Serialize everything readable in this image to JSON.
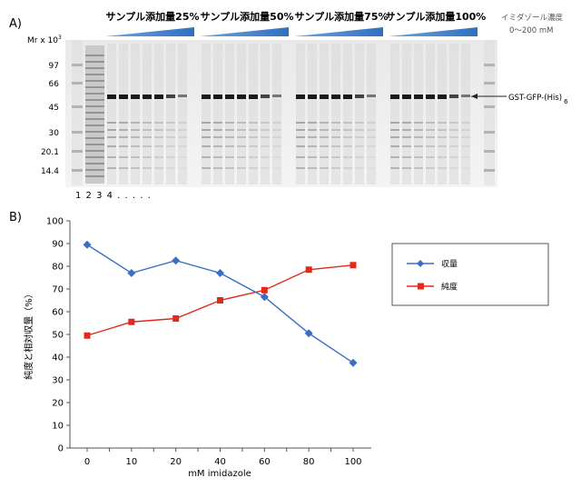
{
  "panel_a": {
    "label": "A)",
    "mr_axis_label": "Mr x 10",
    "mr_axis_superscript": "3",
    "mr_markers": [
      "97",
      "66",
      "45",
      "30",
      "20.1",
      "14.4"
    ],
    "group_headers": [
      "サンプル添加量25%",
      "サンプル添加量50%",
      "サンプル添加量75%",
      "サンプル添加量100%"
    ],
    "gradient_legend": [
      "イミダゾール濃度",
      "0〜200 mM"
    ],
    "band_label": "GST-GFP-(His)",
    "band_label_subscript": "6",
    "lane_numbers": "1 2 3 4 . . . . .",
    "colors": {
      "wedge": "#2f6fc0",
      "band": "#1b1b1b",
      "gel_bg": "#efefef"
    }
  },
  "chart_data": {
    "type": "line",
    "panel_label": "B)",
    "categories": [
      "0",
      "10",
      "20",
      "40",
      "60",
      "80",
      "100"
    ],
    "series": [
      {
        "name": "収量",
        "values": [
          89.5,
          77,
          82.5,
          77,
          66.5,
          50.5,
          37.5
        ],
        "color": "#3a6fc4",
        "marker": "diamond"
      },
      {
        "name": "純度",
        "values": [
          49.5,
          55.5,
          57,
          65,
          69.5,
          78.5,
          80.5
        ],
        "color": "#e02a1c",
        "marker": "square"
      }
    ],
    "xlabel": "mM imidazole",
    "ylabel": "純度と相対収量（%）",
    "ylim": [
      0,
      100
    ],
    "yticks": [
      0,
      10,
      20,
      30,
      40,
      50,
      60,
      70,
      80,
      90,
      100
    ],
    "grid": false,
    "legend_position": "right"
  }
}
